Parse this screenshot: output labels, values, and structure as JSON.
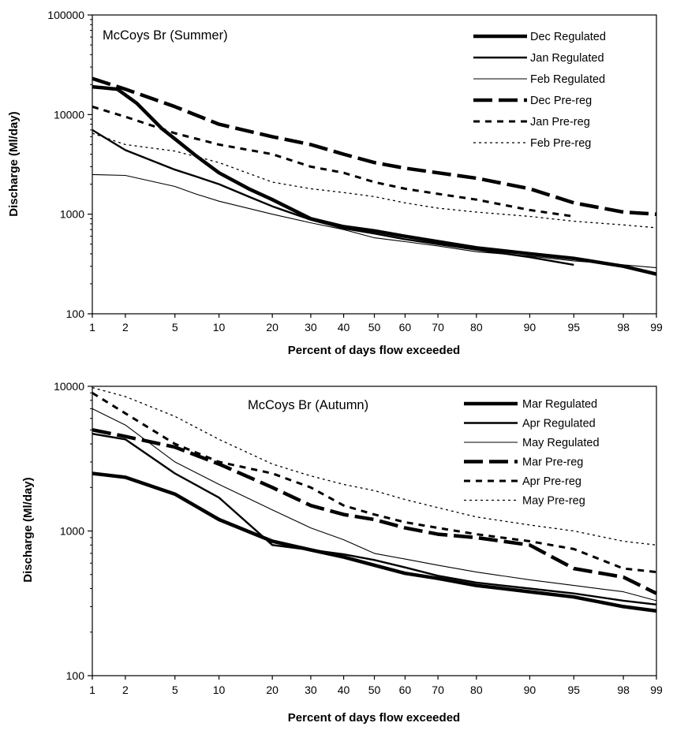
{
  "chart_data": [
    {
      "type": "line",
      "title": "McCoys Br (Summer)",
      "xlabel": "Percent of days flow exceeded",
      "ylabel": "Discharge (Ml/day)",
      "x_scale": "normal-probability",
      "y_scale": "log",
      "ylim": [
        100,
        100000
      ],
      "xlim": [
        1,
        99
      ],
      "x_ticks": [
        1,
        2,
        5,
        10,
        20,
        30,
        40,
        50,
        60,
        70,
        80,
        90,
        95,
        98,
        99
      ],
      "y_ticks": [
        100,
        1000,
        10000,
        100000
      ],
      "y_tick_labels": [
        "100",
        "1000",
        "10000",
        "100000"
      ],
      "legend_position": "top-right",
      "series": [
        {
          "name": "Dec Regulated",
          "style": "thick-solid",
          "x": [
            1,
            1.7,
            2.5,
            4,
            5,
            7,
            10,
            15,
            20,
            30,
            40,
            50,
            60,
            70,
            80,
            90,
            95,
            98,
            99
          ],
          "y": [
            19000,
            18000,
            13000,
            7200,
            5700,
            3900,
            2600,
            1800,
            1400,
            900,
            750,
            680,
            600,
            530,
            460,
            400,
            360,
            300,
            250
          ]
        },
        {
          "name": "Jan Regulated",
          "style": "medium-solid",
          "x": [
            1,
            2,
            5,
            7,
            10,
            15,
            20,
            30,
            40,
            50,
            60,
            70,
            80,
            90,
            95
          ],
          "y": [
            7000,
            4400,
            2800,
            2400,
            2000,
            1500,
            1200,
            880,
            720,
            640,
            560,
            500,
            440,
            370,
            310
          ]
        },
        {
          "name": "Feb Regulated",
          "style": "thin-solid",
          "x": [
            1,
            2,
            5,
            7,
            10,
            20,
            30,
            40,
            50,
            60,
            70,
            80,
            90,
            95,
            98,
            99
          ],
          "y": [
            2500,
            2450,
            1900,
            1600,
            1350,
            1000,
            820,
            700,
            580,
            530,
            480,
            420,
            380,
            340,
            310,
            290
          ]
        },
        {
          "name": "Dec Pre-reg",
          "style": "thick-long-dash",
          "x": [
            1,
            2,
            5,
            10,
            20,
            30,
            40,
            50,
            60,
            70,
            80,
            90,
            95,
            98,
            99
          ],
          "y": [
            23000,
            18000,
            12000,
            8000,
            6000,
            5000,
            4000,
            3300,
            2900,
            2600,
            2300,
            1800,
            1300,
            1050,
            1000
          ]
        },
        {
          "name": "Jan Pre-reg",
          "style": "medium-dash",
          "x": [
            1,
            2,
            5,
            10,
            20,
            30,
            40,
            50,
            60,
            70,
            80,
            90,
            95
          ],
          "y": [
            12000,
            9500,
            6500,
            5000,
            4000,
            3000,
            2600,
            2100,
            1800,
            1600,
            1400,
            1100,
            950
          ]
        },
        {
          "name": "Feb Pre-reg",
          "style": "thin-dotted",
          "x": [
            1,
            2,
            5,
            10,
            20,
            30,
            40,
            50,
            60,
            70,
            80,
            90,
            95,
            98,
            99
          ],
          "y": [
            6500,
            5000,
            4300,
            3300,
            2100,
            1800,
            1650,
            1500,
            1300,
            1150,
            1050,
            950,
            850,
            780,
            730
          ]
        }
      ]
    },
    {
      "type": "line",
      "title": "McCoys Br (Autumn)",
      "xlabel": "Percent of days flow exceeded",
      "ylabel": "Discharge (Ml/day)",
      "x_scale": "normal-probability",
      "y_scale": "log",
      "ylim": [
        100,
        10000
      ],
      "xlim": [
        1,
        99
      ],
      "x_ticks": [
        1,
        2,
        5,
        10,
        20,
        30,
        40,
        50,
        60,
        70,
        80,
        90,
        95,
        98,
        99
      ],
      "y_ticks": [
        100,
        1000,
        10000
      ],
      "y_tick_labels": [
        "100",
        "1000",
        "10000"
      ],
      "legend_position": "top-right",
      "series": [
        {
          "name": "Mar Regulated",
          "style": "thick-solid",
          "x": [
            1,
            2,
            5,
            10,
            20,
            30,
            40,
            50,
            60,
            70,
            80,
            90,
            95,
            98,
            99
          ],
          "y": [
            2500,
            2350,
            1800,
            1200,
            850,
            740,
            660,
            580,
            510,
            470,
            420,
            380,
            350,
            300,
            280
          ]
        },
        {
          "name": "Apr Regulated",
          "style": "medium-solid",
          "x": [
            1,
            2,
            5,
            10,
            20,
            30,
            40,
            50,
            60,
            70,
            80,
            90,
            95,
            98,
            99
          ],
          "y": [
            4700,
            4300,
            2500,
            1700,
            800,
            740,
            690,
            630,
            560,
            490,
            440,
            400,
            370,
            330,
            310
          ]
        },
        {
          "name": "May Regulated",
          "style": "thin-solid",
          "x": [
            1,
            2,
            5,
            10,
            20,
            30,
            40,
            50,
            60,
            70,
            80,
            90,
            95,
            98,
            99
          ],
          "y": [
            7000,
            5400,
            3000,
            2100,
            1400,
            1050,
            870,
            700,
            640,
            580,
            520,
            460,
            420,
            380,
            330
          ]
        },
        {
          "name": "Mar Pre-reg",
          "style": "thick-long-dash",
          "x": [
            1,
            2,
            5,
            10,
            20,
            30,
            40,
            50,
            60,
            70,
            80,
            90,
            95,
            98,
            99
          ],
          "y": [
            5000,
            4500,
            3800,
            2900,
            2000,
            1500,
            1300,
            1200,
            1050,
            950,
            900,
            800,
            550,
            480,
            370
          ]
        },
        {
          "name": "Apr Pre-reg",
          "style": "medium-dash",
          "x": [
            1,
            2,
            5,
            10,
            20,
            30,
            40,
            50,
            60,
            70,
            80,
            90,
            95,
            98,
            99
          ],
          "y": [
            9000,
            6500,
            4000,
            3000,
            2500,
            2000,
            1500,
            1300,
            1150,
            1050,
            950,
            850,
            750,
            550,
            520
          ]
        },
        {
          "name": "May Pre-reg",
          "style": "thin-dotted",
          "x": [
            1,
            2,
            5,
            10,
            20,
            30,
            40,
            50,
            60,
            70,
            80,
            90,
            95,
            98,
            99
          ],
          "y": [
            9800,
            8500,
            6200,
            4300,
            2900,
            2400,
            2100,
            1900,
            1650,
            1450,
            1250,
            1100,
            1000,
            850,
            800
          ]
        }
      ]
    }
  ]
}
